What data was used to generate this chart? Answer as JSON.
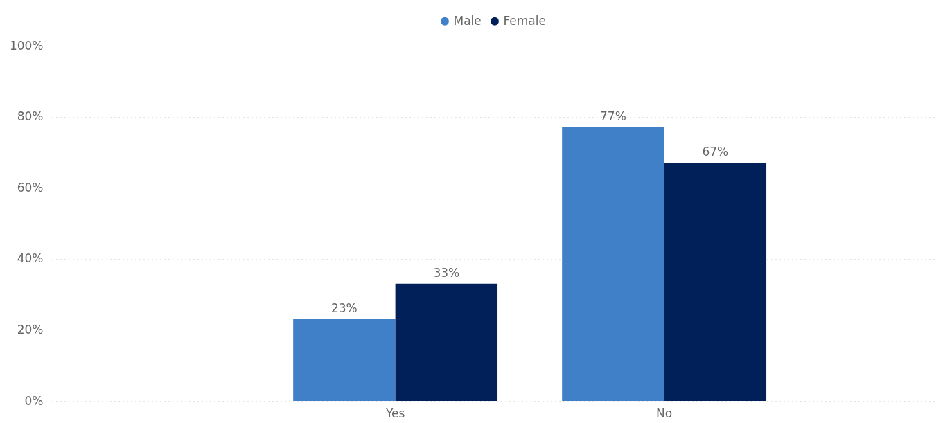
{
  "chart_data": {
    "type": "bar",
    "categories": [
      "Yes",
      "No"
    ],
    "series": [
      {
        "name": "Male",
        "color": "#4080c8",
        "values": [
          23,
          77
        ],
        "value_labels": [
          "23%",
          "77%"
        ]
      },
      {
        "name": "Female",
        "color": "#01205a",
        "values": [
          33,
          67
        ],
        "value_labels": [
          "33%",
          "67%"
        ]
      }
    ],
    "ylim": [
      0,
      100
    ],
    "yticks": [
      {
        "value": 0,
        "label": "0%"
      },
      {
        "value": 20,
        "label": "20%"
      },
      {
        "value": 40,
        "label": "40%"
      },
      {
        "value": 60,
        "label": "60%"
      },
      {
        "value": 80,
        "label": "80%"
      },
      {
        "value": 100,
        "label": "100%"
      }
    ],
    "grid": "y",
    "legend": "top"
  }
}
